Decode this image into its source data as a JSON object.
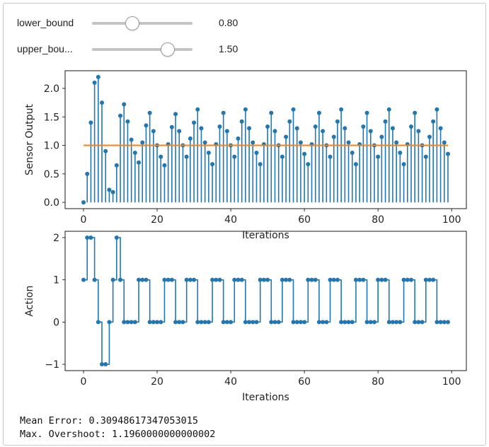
{
  "controls": {
    "lower_bound": {
      "label": "lower_bound",
      "value_text": "0.80",
      "value": 0.8,
      "min": 0,
      "max": 2
    },
    "upper_bound": {
      "label": "upper_bou...",
      "value_text": "1.50",
      "value": 1.5,
      "min": 0,
      "max": 2
    }
  },
  "chart_data": [
    {
      "type": "stem",
      "xlabel": "Iterations",
      "ylabel": "Sensor Output",
      "xlim": [
        -5,
        104
      ],
      "ylim": [
        -0.11,
        2.31
      ],
      "xticks": [
        0,
        20,
        40,
        60,
        80,
        100
      ],
      "yticks": [
        0.0,
        0.5,
        1.0,
        1.5,
        2.0
      ],
      "grid": false,
      "series": [
        {
          "color": "#1f77b4",
          "x": [
            0,
            1,
            2,
            3,
            4,
            5,
            6,
            7,
            8,
            9,
            10,
            11,
            12,
            13,
            14,
            15,
            16,
            17,
            18,
            19,
            20,
            21,
            22,
            23,
            24,
            25,
            26,
            27,
            28,
            29,
            30,
            31,
            32,
            33,
            34,
            35,
            36,
            37,
            38,
            39,
            40,
            41,
            42,
            43,
            44,
            45,
            46,
            47,
            48,
            49,
            50,
            51,
            52,
            53,
            54,
            55,
            56,
            57,
            58,
            59,
            60,
            61,
            62,
            63,
            64,
            65,
            66,
            67,
            68,
            69,
            70,
            71,
            72,
            73,
            74,
            75,
            76,
            77,
            78,
            79,
            80,
            81,
            82,
            83,
            84,
            85,
            86,
            87,
            88,
            89,
            90,
            91,
            92,
            93,
            94,
            95,
            96,
            97,
            98,
            99
          ],
          "values": [
            0.0,
            0.5,
            1.4,
            2.1,
            2.2,
            1.75,
            0.9,
            0.22,
            0.18,
            0.65,
            1.52,
            1.72,
            1.42,
            1.1,
            0.87,
            0.7,
            1.05,
            1.35,
            1.57,
            1.25,
            1.0,
            0.8,
            0.65,
            1.02,
            1.32,
            1.55,
            1.25,
            1.0,
            0.8,
            1.12,
            1.4,
            1.63,
            1.3,
            1.05,
            0.87,
            0.67,
            1.02,
            1.33,
            1.57,
            1.25,
            1.0,
            0.8,
            1.12,
            1.42,
            1.63,
            1.3,
            1.05,
            0.87,
            0.67,
            1.02,
            1.33,
            1.57,
            1.25,
            1.0,
            0.8,
            1.15,
            1.42,
            1.63,
            1.3,
            1.05,
            0.85,
            0.67,
            1.02,
            1.33,
            1.57,
            1.25,
            1.0,
            0.8,
            1.15,
            1.42,
            1.63,
            1.3,
            1.05,
            0.87,
            0.67,
            1.02,
            1.33,
            1.57,
            1.25,
            1.0,
            0.8,
            1.15,
            1.42,
            1.63,
            1.3,
            1.05,
            0.87,
            0.67,
            1.02,
            1.33,
            1.57,
            1.25,
            1.0,
            0.8,
            1.15,
            1.42,
            1.63,
            1.3,
            1.05,
            0.85
          ]
        },
        {
          "color": "#ff7f0e",
          "type": "line",
          "x": [
            0,
            99
          ],
          "values": [
            1.0,
            1.0
          ]
        }
      ]
    },
    {
      "type": "step",
      "xlabel": "Iterations",
      "ylabel": "Action",
      "xlim": [
        -5,
        104
      ],
      "ylim": [
        -1.15,
        2.15
      ],
      "xticks": [
        0,
        20,
        40,
        60,
        80,
        100
      ],
      "yticks": [
        -1,
        0,
        1,
        2
      ],
      "grid": false,
      "series": [
        {
          "color": "#1f77b4",
          "x": [
            0,
            1,
            2,
            3,
            4,
            5,
            6,
            7,
            8,
            9,
            10,
            11,
            12,
            13,
            14,
            15,
            16,
            17,
            18,
            19,
            20,
            21,
            22,
            23,
            24,
            25,
            26,
            27,
            28,
            29,
            30,
            31,
            32,
            33,
            34,
            35,
            36,
            37,
            38,
            39,
            40,
            41,
            42,
            43,
            44,
            45,
            46,
            47,
            48,
            49,
            50,
            51,
            52,
            53,
            54,
            55,
            56,
            57,
            58,
            59,
            60,
            61,
            62,
            63,
            64,
            65,
            66,
            67,
            68,
            69,
            70,
            71,
            72,
            73,
            74,
            75,
            76,
            77,
            78,
            79,
            80,
            81,
            82,
            83,
            84,
            85,
            86,
            87,
            88,
            89,
            90,
            91,
            92,
            93,
            94,
            95,
            96,
            97,
            98,
            99
          ],
          "values": [
            1,
            2,
            2,
            1,
            0,
            -1,
            -1,
            0,
            1,
            2,
            1,
            0,
            0,
            0,
            0,
            1,
            1,
            1,
            0,
            0,
            0,
            0,
            1,
            1,
            1,
            0,
            0,
            0,
            1,
            1,
            1,
            0,
            0,
            0,
            0,
            1,
            1,
            1,
            0,
            0,
            0,
            1,
            1,
            1,
            0,
            0,
            0,
            0,
            1,
            1,
            1,
            0,
            0,
            0,
            1,
            1,
            1,
            0,
            0,
            0,
            0,
            1,
            1,
            1,
            0,
            0,
            0,
            1,
            1,
            1,
            0,
            0,
            0,
            0,
            1,
            1,
            1,
            0,
            0,
            0,
            1,
            1,
            1,
            0,
            0,
            0,
            0,
            1,
            1,
            1,
            0,
            0,
            0,
            1,
            1,
            1,
            0,
            0,
            0,
            0
          ]
        }
      ]
    }
  ],
  "stats": {
    "mean_error": "Mean Error: 0.30948617347053015",
    "max_overshoot": "Max. Overshoot: 1.1960000000000002"
  }
}
